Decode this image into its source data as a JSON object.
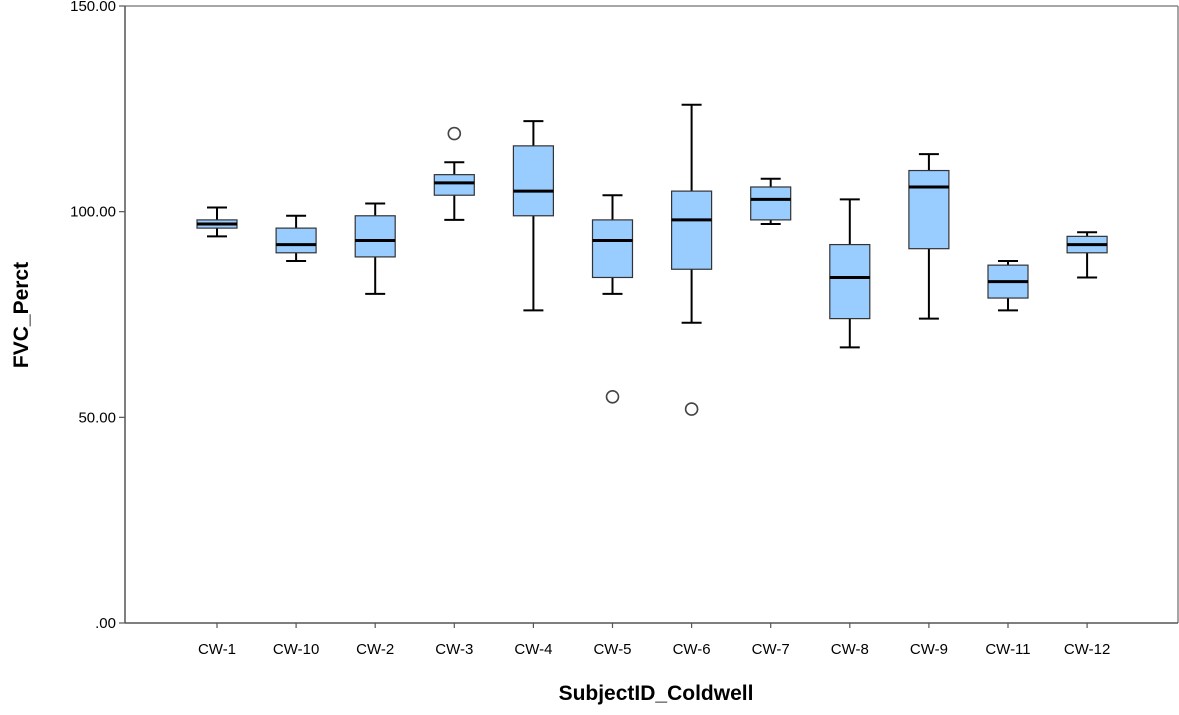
{
  "chart_data": {
    "type": "box",
    "xlabel": "SubjectID_Coldwell",
    "ylabel": "FVC_Perct",
    "ylim": [
      0,
      150
    ],
    "yticks": [
      {
        "value": 0,
        "label": ".00"
      },
      {
        "value": 50,
        "label": "50.00"
      },
      {
        "value": 100,
        "label": "100.00"
      },
      {
        "value": 150,
        "label": "150.00"
      }
    ],
    "grid": false,
    "box_color": "#99ccff",
    "categories": [
      "CW-1",
      "CW-10",
      "CW-2",
      "CW-3",
      "CW-4",
      "CW-5",
      "CW-6",
      "CW-7",
      "CW-8",
      "CW-9",
      "CW-11",
      "CW-12"
    ],
    "boxes": [
      {
        "category": "CW-1",
        "min": 94,
        "q1": 96,
        "median": 97,
        "q3": 98,
        "max": 101,
        "outliers": []
      },
      {
        "category": "CW-10",
        "min": 88,
        "q1": 90,
        "median": 92,
        "q3": 96,
        "max": 99,
        "outliers": []
      },
      {
        "category": "CW-2",
        "min": 80,
        "q1": 89,
        "median": 93,
        "q3": 99,
        "max": 102,
        "outliers": []
      },
      {
        "category": "CW-3",
        "min": 98,
        "q1": 104,
        "median": 107,
        "q3": 109,
        "max": 112,
        "outliers": [
          119
        ]
      },
      {
        "category": "CW-4",
        "min": 76,
        "q1": 99,
        "median": 105,
        "q3": 116,
        "max": 122,
        "outliers": []
      },
      {
        "category": "CW-5",
        "min": 80,
        "q1": 84,
        "median": 93,
        "q3": 98,
        "max": 104,
        "outliers": [
          55
        ]
      },
      {
        "category": "CW-6",
        "min": 73,
        "q1": 86,
        "median": 98,
        "q3": 105,
        "max": 126,
        "outliers": [
          52
        ]
      },
      {
        "category": "CW-7",
        "min": 97,
        "q1": 98,
        "median": 103,
        "q3": 106,
        "max": 108,
        "outliers": []
      },
      {
        "category": "CW-8",
        "min": 67,
        "q1": 74,
        "median": 84,
        "q3": 92,
        "max": 103,
        "outliers": []
      },
      {
        "category": "CW-9",
        "min": 74,
        "q1": 91,
        "median": 106,
        "q3": 110,
        "max": 114,
        "outliers": []
      },
      {
        "category": "CW-11",
        "min": 76,
        "q1": 79,
        "median": 83,
        "q3": 87,
        "max": 88,
        "outliers": []
      },
      {
        "category": "CW-12",
        "min": 84,
        "q1": 90,
        "median": 92,
        "q3": 94,
        "max": 95,
        "outliers": []
      }
    ]
  }
}
